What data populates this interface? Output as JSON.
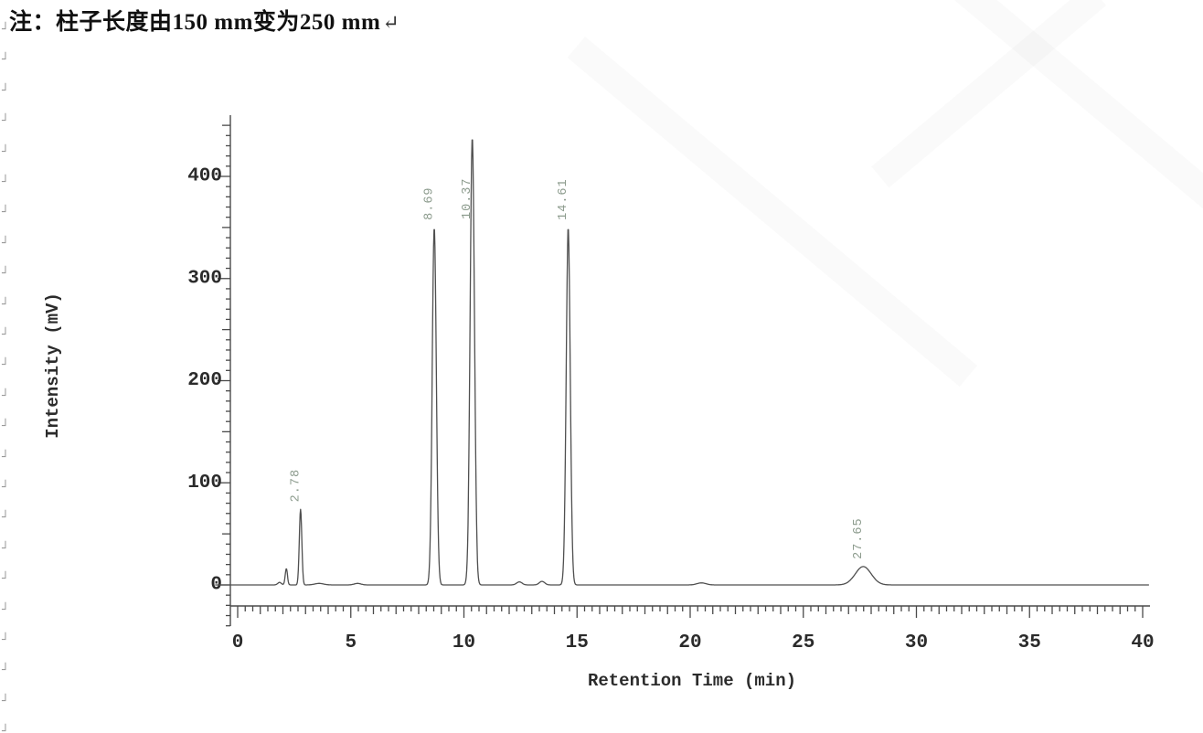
{
  "note": {
    "text": "注：柱子长度由150 mm变为250 mm",
    "paragraph_mark": "↵"
  },
  "decorations": {
    "left_margin_mark_glyph": "┘",
    "left_margin_mark_count": 24,
    "watermark_color": "rgba(100,100,100,0.035)"
  },
  "chart_data": {
    "type": "line",
    "title": "",
    "xlabel": "Retention Time (min)",
    "ylabel": "Intensity (mV)",
    "x_axis_range": [
      0,
      40
    ],
    "y_axis_range": [
      -40,
      450
    ],
    "x_tick_labels": [
      "0",
      "5",
      "10",
      "15",
      "20",
      "25",
      "30",
      "35",
      "40"
    ],
    "y_tick_labels": [
      "0",
      "100",
      "200",
      "300",
      "400"
    ],
    "x_major_step": 5,
    "y_major_step": 100,
    "y_minor_step": 10,
    "grid": false,
    "legend": null,
    "axis_color": "#4a4a4a",
    "trace_color": "#4f4f4f",
    "tick_label_color": "#2b2b2b",
    "peak_label_color": "#8d9c8e",
    "trace_time_range": [
      -1.0,
      40.3
    ],
    "peaks": [
      {
        "rt": 2.78,
        "height_mv": 74,
        "sigma": 0.055,
        "label": "2.78"
      },
      {
        "rt": 8.69,
        "height_mv": 350,
        "sigma": 0.09,
        "label": "8.69"
      },
      {
        "rt": 10.37,
        "height_mv": 438,
        "sigma": 0.095,
        "label": "10.37"
      },
      {
        "rt": 14.61,
        "height_mv": 350,
        "sigma": 0.09,
        "label": "14.61"
      },
      {
        "rt": 27.65,
        "height_mv": 18,
        "sigma": 0.35,
        "label": "27.65"
      }
    ],
    "baseline_features": [
      {
        "rt": 1.85,
        "height_mv": 2.5,
        "sigma": 0.08
      },
      {
        "rt": 2.15,
        "height_mv": 16,
        "sigma": 0.05
      },
      {
        "rt": 3.6,
        "height_mv": 1.5,
        "sigma": 0.2
      },
      {
        "rt": 5.3,
        "height_mv": 1.5,
        "sigma": 0.15
      },
      {
        "rt": 12.45,
        "height_mv": 3,
        "sigma": 0.12
      },
      {
        "rt": 13.45,
        "height_mv": 3.5,
        "sigma": 0.12
      },
      {
        "rt": 20.5,
        "height_mv": 2,
        "sigma": 0.2
      }
    ]
  }
}
